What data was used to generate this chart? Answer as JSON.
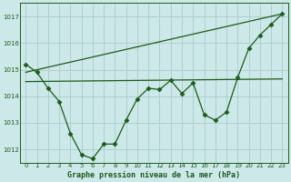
{
  "bg_color": "#cce8e8",
  "grid_color": "#aacccc",
  "line_color": "#1a5c1a",
  "title": "Graphe pression niveau de la mer (hPa)",
  "xlim": [
    -0.5,
    23.5
  ],
  "ylim": [
    1011.5,
    1017.5
  ],
  "yticks": [
    1012,
    1013,
    1014,
    1015,
    1016,
    1017
  ],
  "xticks": [
    0,
    1,
    2,
    3,
    4,
    5,
    6,
    7,
    8,
    9,
    10,
    11,
    12,
    13,
    14,
    15,
    16,
    17,
    18,
    19,
    20,
    21,
    22,
    23
  ],
  "series_main": {
    "x": [
      0,
      1,
      2,
      3,
      4,
      5,
      6,
      7,
      8,
      9,
      10,
      11,
      12,
      13,
      14,
      15,
      16,
      17,
      18,
      19,
      20,
      21,
      22,
      23
    ],
    "y": [
      1015.2,
      1014.9,
      1014.3,
      1013.8,
      1012.6,
      1011.8,
      1011.65,
      1012.2,
      1012.2,
      1013.1,
      1013.9,
      1014.3,
      1014.25,
      1014.6,
      1014.1,
      1014.5,
      1013.3,
      1013.1,
      1013.4,
      1014.7,
      1015.8,
      1016.3,
      1016.7,
      1017.1
    ]
  },
  "trend_flat": {
    "x": [
      0,
      23
    ],
    "y": [
      1014.55,
      1014.65
    ]
  },
  "trend_rising": {
    "x": [
      0,
      23
    ],
    "y": [
      1014.9,
      1017.1
    ]
  },
  "title_fontsize": 6,
  "tick_fontsize": 5
}
